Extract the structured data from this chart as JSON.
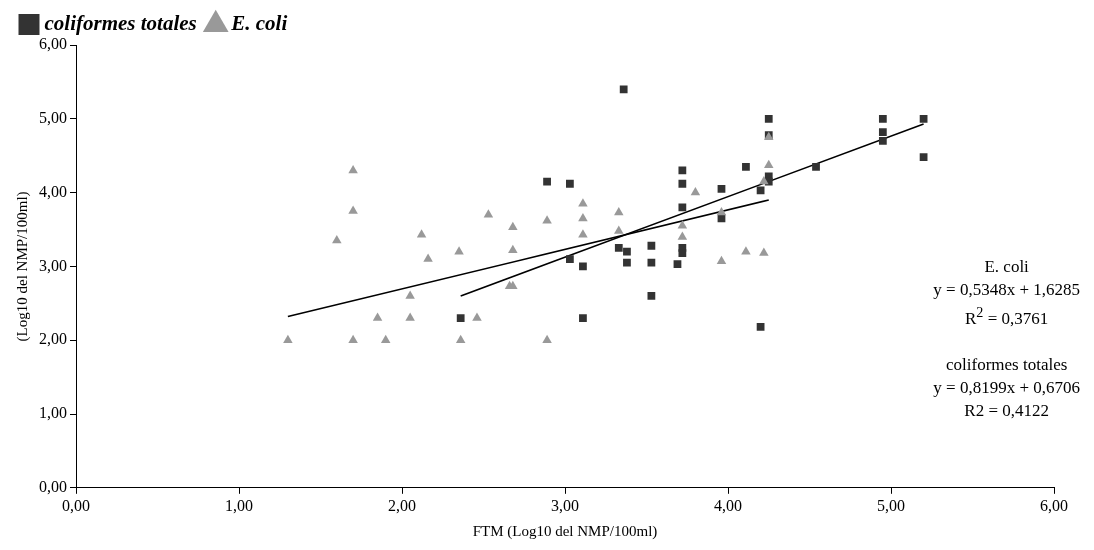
{
  "chart_data": {
    "type": "scatter",
    "xlabel": "FTM (Log10 del NMP/100ml)",
    "ylabel": "(Log10 del NMP/100ml)",
    "xlim": [
      0,
      6
    ],
    "ylim": [
      0,
      6
    ],
    "xticks": [
      {
        "value": 0,
        "label": "0,00"
      },
      {
        "value": 1,
        "label": "1,00"
      },
      {
        "value": 2,
        "label": "2,00"
      },
      {
        "value": 3,
        "label": "3,00"
      },
      {
        "value": 4,
        "label": "4,00"
      },
      {
        "value": 5,
        "label": "5,00"
      },
      {
        "value": 6,
        "label": "6,00"
      }
    ],
    "yticks": [
      {
        "value": 0,
        "label": "0,00"
      },
      {
        "value": 1,
        "label": "1,00"
      },
      {
        "value": 2,
        "label": "2,00"
      },
      {
        "value": 3,
        "label": "3,00"
      },
      {
        "value": 4,
        "label": "4,00"
      },
      {
        "value": 5,
        "label": "5,00"
      },
      {
        "value": 6,
        "label": "6,00"
      }
    ],
    "grid": false,
    "legend": "top left",
    "series": [
      {
        "name": "coliformes totales",
        "color": "#333333",
        "marker": "square",
        "x": [
          2.36,
          2.89,
          3.03,
          3.03,
          3.11,
          3.11,
          3.33,
          3.36,
          3.38,
          3.38,
          3.53,
          3.53,
          3.53,
          3.69,
          3.72,
          3.72,
          3.72,
          3.72,
          3.72,
          3.96,
          3.96,
          4.11,
          4.2,
          4.2,
          4.25,
          4.25,
          4.25,
          4.25,
          4.54,
          4.95,
          4.95,
          4.95,
          5.2,
          5.2
        ],
        "values": [
          2.3,
          4.15,
          4.12,
          3.1,
          3.0,
          2.3,
          3.25,
          5.4,
          3.2,
          3.05,
          3.28,
          3.05,
          2.6,
          3.03,
          4.3,
          4.12,
          3.8,
          3.25,
          3.18,
          4.05,
          3.65,
          4.35,
          4.03,
          2.18,
          5.0,
          4.78,
          4.22,
          4.15,
          4.35,
          5.0,
          4.82,
          4.7,
          5.0,
          4.48
        ]
      },
      {
        "name": "E. coli",
        "color": "#999999",
        "marker": "triangle",
        "x": [
          1.3,
          1.6,
          1.7,
          1.7,
          1.7,
          1.85,
          1.9,
          2.05,
          2.05,
          2.12,
          2.16,
          2.35,
          2.36,
          2.46,
          2.53,
          2.66,
          2.68,
          2.68,
          2.68,
          2.89,
          2.89,
          3.11,
          3.11,
          3.11,
          3.33,
          3.33,
          3.72,
          3.72,
          3.8,
          3.96,
          3.96,
          4.11,
          4.22,
          4.22,
          4.25,
          4.25
        ],
        "values": [
          2.0,
          3.35,
          4.3,
          3.75,
          2.0,
          2.3,
          2.0,
          2.6,
          2.3,
          3.43,
          3.1,
          3.2,
          2.0,
          2.3,
          3.7,
          2.73,
          2.73,
          3.53,
          3.22,
          3.62,
          2.0,
          3.85,
          3.65,
          3.43,
          3.73,
          3.48,
          3.55,
          3.4,
          4.0,
          3.73,
          3.07,
          3.2,
          3.18,
          4.15,
          4.37,
          4.75
        ]
      },
      {
        "type": "line",
        "color": "#000000",
        "marker": "none",
        "x": [
          1.3,
          4.25
        ],
        "values": [
          2.32,
          3.9
        ]
      },
      {
        "type": "line",
        "color": "#000000",
        "marker": "none",
        "x": [
          2.36,
          5.2
        ],
        "values": [
          2.6,
          4.93
        ]
      }
    ],
    "annotations": [
      "E. coli",
      "y = 0,5348x + 1,6285",
      "R$^{2}$ = 0,3761",
      "coliformes totales",
      "y = 0,8199x + 0,6706",
      "R2 = 0,4122"
    ]
  }
}
